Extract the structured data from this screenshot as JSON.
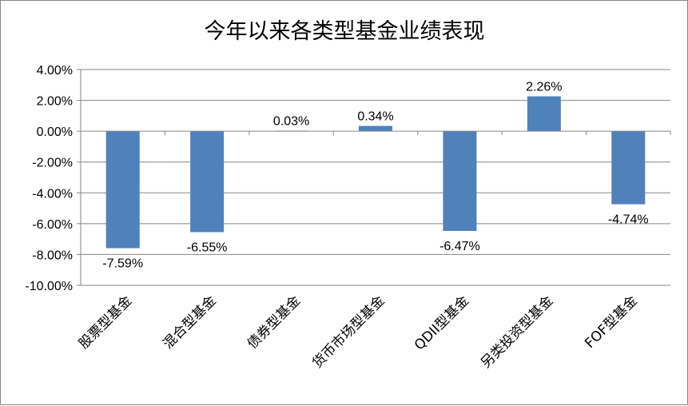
{
  "chart_data": {
    "type": "bar",
    "title": "今年以来各类型基金业绩表现",
    "categories": [
      "股票型基金",
      "混合型基金",
      "债券型基金",
      "货币市场型基金",
      "QDII型基金",
      "另类投资型基金",
      "FOF型基金"
    ],
    "values": [
      -7.59,
      -6.55,
      0.03,
      0.34,
      -6.47,
      2.26,
      -4.74
    ],
    "data_labels": [
      "-7.59%",
      "-6.55%",
      "0.03%",
      "0.34%",
      "-6.47%",
      "2.26%",
      "-4.74%"
    ],
    "ylim": [
      -10,
      4
    ],
    "yticks": [
      4,
      2,
      0,
      -2,
      -4,
      -6,
      -8,
      -10
    ],
    "ytick_labels": [
      "4.00%",
      "2.00%",
      "0.00%",
      "-2.00%",
      "-4.00%",
      "-6.00%",
      "-8.00%",
      "-10.00%"
    ],
    "xlabel": "",
    "ylabel": "",
    "grid": true,
    "legend": "none",
    "bar_color": "#4F81BD",
    "grid_color": "#868686"
  }
}
